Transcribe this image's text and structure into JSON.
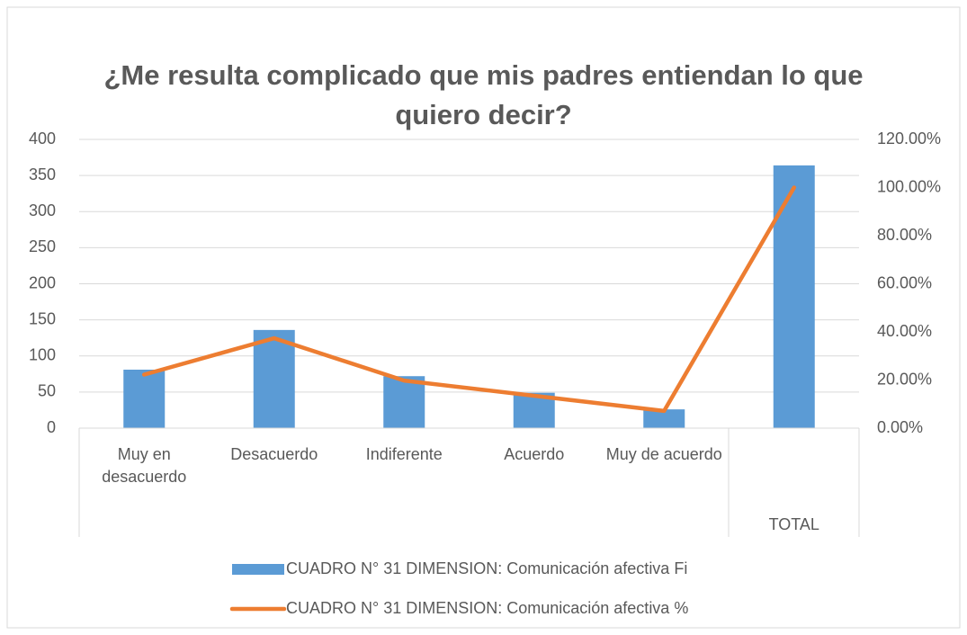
{
  "chart_data": {
    "type": "combo",
    "title": "¿Me resulta complicado que mis padres entiendan lo que quiero decir?",
    "categories": [
      "Muy en desacuerdo",
      "Desacuerdo",
      "Indiferente",
      "Acuerdo",
      "Muy de acuerdo",
      "TOTAL"
    ],
    "series": [
      {
        "name": "CUADRO N° 31 DIMENSION: Comunicación afectiva Fi",
        "type": "bar",
        "color": "#5b9bd5",
        "values": [
          81,
          136,
          72,
          49,
          26,
          364
        ]
      },
      {
        "name": "CUADRO N° 31 DIMENSION: Comunicación afectiva %",
        "type": "line",
        "axis": "y2",
        "color": "#ed7d31",
        "values": [
          22.25,
          37.36,
          19.78,
          13.46,
          7.14,
          100
        ]
      }
    ],
    "ylim": [
      0,
      400
    ],
    "yticks": [
      0,
      50,
      100,
      150,
      200,
      250,
      300,
      350,
      400
    ],
    "y2lim": [
      0,
      120
    ],
    "y2ticks": [
      {
        "value": 0,
        "label": "0.00%"
      },
      {
        "value": 20,
        "label": "20.00%"
      },
      {
        "value": 40,
        "label": "40.00%"
      },
      {
        "value": 60,
        "label": "60.00%"
      },
      {
        "value": 80,
        "label": "80.00%"
      },
      {
        "value": 100,
        "label": "100.00%"
      },
      {
        "value": 120,
        "label": "120.00%"
      }
    ],
    "grid": true,
    "legend": "bottom"
  }
}
